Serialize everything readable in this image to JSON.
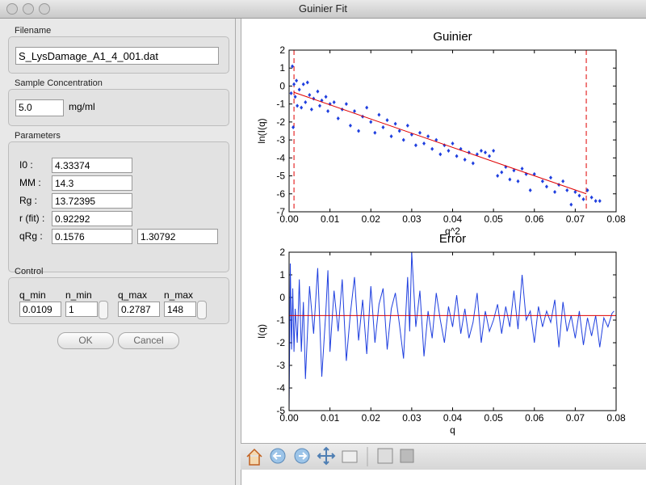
{
  "window": {
    "title": "Guinier Fit"
  },
  "panel": {
    "filename": {
      "label": "Filename",
      "value": "S_LysDamage_A1_4_001.dat"
    },
    "concentration": {
      "label": "Sample Concentration",
      "value": "5.0",
      "unit": "mg/ml"
    },
    "parameters": {
      "label": "Parameters",
      "rows": [
        {
          "label": "I0 :",
          "value": "4.33374"
        },
        {
          "label": "MM :",
          "value": "14.3"
        },
        {
          "label": "Rg :",
          "value": "13.72395"
        },
        {
          "label": "r (fit) :",
          "value": "0.92292"
        },
        {
          "label": "qRg :",
          "value": "0.1576",
          "value2": "1.30792"
        }
      ]
    },
    "control": {
      "label": "Control",
      "fields": [
        {
          "label": "q_min",
          "value": "0.0109"
        },
        {
          "label": "n_min",
          "value": "1"
        },
        {
          "label": "q_max",
          "value": "0.2787"
        },
        {
          "label": "n_max",
          "value": "148"
        }
      ]
    },
    "buttons": {
      "ok": "OK",
      "cancel": "Cancel"
    }
  },
  "chart_data": [
    {
      "type": "scatter",
      "title": "Guinier",
      "xlabel": "q^2",
      "ylabel": "ln(I(q)",
      "xlim": [
        0,
        0.08
      ],
      "ylim": [
        -7,
        2
      ],
      "xticks": [
        {
          "value": 0,
          "label": "0.00"
        },
        {
          "value": 0.01,
          "label": "0.01"
        },
        {
          "value": 0.02,
          "label": "0.02"
        },
        {
          "value": 0.03,
          "label": "0.03"
        },
        {
          "value": 0.04,
          "label": "0.04"
        },
        {
          "value": 0.05,
          "label": "0.05"
        },
        {
          "value": 0.06,
          "label": "0.06"
        },
        {
          "value": 0.07,
          "label": "0.07"
        },
        {
          "value": 0.08,
          "label": "0.08"
        }
      ],
      "yticks": [
        2,
        1,
        0,
        -1,
        -2,
        -3,
        -4,
        -5,
        -6,
        -7
      ],
      "vlines": {
        "color": "#e00000",
        "x": [
          0.0012,
          0.0727
        ]
      },
      "series": [
        {
          "type": "scatter",
          "color": "#1f3fdf",
          "x": [
            0.0005,
            0.0008,
            0.001,
            0.0012,
            0.0015,
            0.0018,
            0.002,
            0.0025,
            0.003,
            0.0035,
            0.004,
            0.0045,
            0.005,
            0.0055,
            0.006,
            0.007,
            0.0075,
            0.008,
            0.009,
            0.0095,
            0.01,
            0.011,
            0.012,
            0.013,
            0.014,
            0.015,
            0.016,
            0.017,
            0.018,
            0.019,
            0.02,
            0.021,
            0.022,
            0.023,
            0.024,
            0.025,
            0.026,
            0.027,
            0.028,
            0.029,
            0.03,
            0.031,
            0.032,
            0.033,
            0.034,
            0.035,
            0.036,
            0.037,
            0.038,
            0.039,
            0.04,
            0.041,
            0.042,
            0.043,
            0.044,
            0.045,
            0.046,
            0.047,
            0.048,
            0.049,
            0.05,
            0.051,
            0.052,
            0.053,
            0.054,
            0.055,
            0.056,
            0.057,
            0.058,
            0.059,
            0.06,
            0.062,
            0.063,
            0.064,
            0.065,
            0.066,
            0.067,
            0.068,
            0.069,
            0.07,
            0.071,
            0.072,
            0.073,
            0.074,
            0.075,
            0.076
          ],
          "values": [
            -0.4,
            1.1,
            -2.3,
            0.1,
            -0.6,
            0.3,
            -1.1,
            -0.2,
            -1.2,
            0.1,
            -0.9,
            0.2,
            -0.5,
            -1.3,
            -0.7,
            -0.3,
            -1.1,
            -0.8,
            -0.6,
            -1.4,
            -1.0,
            -0.9,
            -1.8,
            -1.3,
            -1.0,
            -2.2,
            -1.4,
            -2.5,
            -1.7,
            -1.2,
            -2.0,
            -2.6,
            -1.6,
            -2.3,
            -1.9,
            -2.8,
            -2.1,
            -2.5,
            -3.0,
            -2.2,
            -2.7,
            -3.3,
            -2.6,
            -3.2,
            -2.8,
            -3.5,
            -3.0,
            -3.8,
            -3.3,
            -3.6,
            -3.2,
            -3.9,
            -3.5,
            -4.1,
            -3.7,
            -4.3,
            -3.8,
            -3.6,
            -3.7,
            -3.9,
            -3.6,
            -5.0,
            -4.8,
            -4.5,
            -5.2,
            -4.7,
            -5.3,
            -4.6,
            -4.9,
            -5.8,
            -4.9,
            -5.3,
            -5.6,
            -5.1,
            -5.9,
            -5.5,
            -5.3,
            -5.8,
            -6.6,
            -5.9,
            -6.1,
            -6.3,
            -5.8,
            -6.2,
            -6.4,
            -6.4
          ]
        },
        {
          "type": "line",
          "color": "#e00000",
          "x": [
            0.0012,
            0.0727
          ],
          "values": [
            -0.35,
            -6.0
          ]
        }
      ]
    },
    {
      "type": "line",
      "title": "Error",
      "xlabel": "q",
      "ylabel": "I(q)",
      "xlim": [
        0,
        0.08
      ],
      "ylim": [
        -5,
        2
      ],
      "xticks": [
        {
          "value": 0,
          "label": "0.00"
        },
        {
          "value": 0.01,
          "label": "0.01"
        },
        {
          "value": 0.02,
          "label": "0.02"
        },
        {
          "value": 0.03,
          "label": "0.03"
        },
        {
          "value": 0.04,
          "label": "0.04"
        },
        {
          "value": 0.05,
          "label": "0.05"
        },
        {
          "value": 0.06,
          "label": "0.06"
        },
        {
          "value": 0.07,
          "label": "0.07"
        },
        {
          "value": 0.08,
          "label": "0.08"
        }
      ],
      "yticks": [
        2,
        1,
        0,
        -1,
        -2,
        -3,
        -4,
        -5
      ],
      "series": [
        {
          "type": "line",
          "color": "#1f3fdf",
          "x": [
            0,
            0.0003,
            0.0006,
            0.0009,
            0.0012,
            0.0015,
            0.002,
            0.0025,
            0.003,
            0.0035,
            0.004,
            0.005,
            0.006,
            0.007,
            0.008,
            0.009,
            0.0095,
            0.01,
            0.011,
            0.012,
            0.013,
            0.014,
            0.015,
            0.016,
            0.017,
            0.018,
            0.019,
            0.02,
            0.021,
            0.022,
            0.023,
            0.024,
            0.025,
            0.026,
            0.027,
            0.028,
            0.029,
            0.0295,
            0.03,
            0.031,
            0.032,
            0.033,
            0.034,
            0.035,
            0.036,
            0.037,
            0.038,
            0.039,
            0.04,
            0.041,
            0.042,
            0.043,
            0.044,
            0.045,
            0.046,
            0.047,
            0.048,
            0.049,
            0.05,
            0.051,
            0.052,
            0.053,
            0.054,
            0.055,
            0.056,
            0.057,
            0.058,
            0.059,
            0.06,
            0.061,
            0.062,
            0.063,
            0.064,
            0.065,
            0.066,
            0.067,
            0.068,
            0.069,
            0.07,
            0.071,
            0.072,
            0.073,
            0.074,
            0.075,
            0.076,
            0.077,
            0.078,
            0.079,
            0.0795
          ],
          "values": [
            -5,
            1.5,
            -2.3,
            0.4,
            -2.4,
            -0.5,
            -2.0,
            0.8,
            -2.4,
            -0.2,
            -3.6,
            0.5,
            -1.6,
            1.3,
            -3.5,
            -0.6,
            1.2,
            -2.4,
            0.3,
            -1.5,
            0.8,
            -2.8,
            -0.7,
            0.9,
            -1.9,
            -0.1,
            -2.5,
            0.5,
            -2.0,
            -0.3,
            0.4,
            -2.3,
            -0.5,
            0.2,
            -1.2,
            -2.7,
            0.9,
            -1.5,
            2.0,
            -1.3,
            0.3,
            -2.6,
            -0.6,
            -1.8,
            0.2,
            -1.0,
            -2.0,
            -0.4,
            -1.3,
            0.1,
            -1.6,
            -0.5,
            -1.8,
            -1.1,
            0.2,
            -2.0,
            -0.6,
            -1.5,
            -1.0,
            -0.3,
            -1.6,
            -0.4,
            -1.3,
            0.3,
            -1.4,
            1.0,
            -1.0,
            -0.6,
            -2.0,
            -0.4,
            -1.3,
            -0.6,
            -1.1,
            -0.1,
            -2.2,
            -0.2,
            -1.5,
            -0.8,
            -1.8,
            -0.6,
            -2.1,
            -0.9,
            -1.7,
            -0.8,
            -2.2,
            -0.9,
            -1.3,
            -0.7,
            -0.6
          ]
        },
        {
          "type": "line",
          "color": "#e00000",
          "x": [
            0,
            0.08
          ],
          "values": [
            -0.8,
            -0.8
          ]
        }
      ]
    }
  ]
}
